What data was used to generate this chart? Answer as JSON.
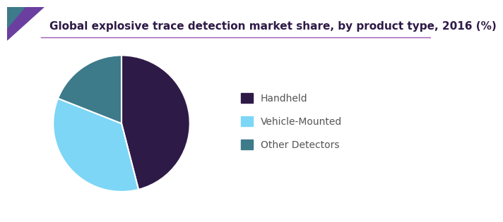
{
  "title": "Global explosive trace detection market share, by product type, 2016 (%)",
  "labels": [
    "Handheld",
    "Vehicle-Mounted",
    "Other Detectors"
  ],
  "sizes": [
    46,
    35,
    19
  ],
  "colors": [
    "#2e1a47",
    "#7dd6f5",
    "#3d7a8a"
  ],
  "startangle": 90,
  "legend_labels": [
    "Handheld",
    "Vehicle-Mounted",
    "Other Detectors"
  ],
  "title_color": "#2e1a47",
  "legend_text_color": "#555555",
  "title_fontsize": 11,
  "background_color": "#ffffff",
  "accent_color1": "#6b3fa0",
  "accent_color2": "#3d7a8a",
  "line_color": "#9b59b6",
  "wedge_edge_color": "#ffffff",
  "wedge_linewidth": 1.5
}
